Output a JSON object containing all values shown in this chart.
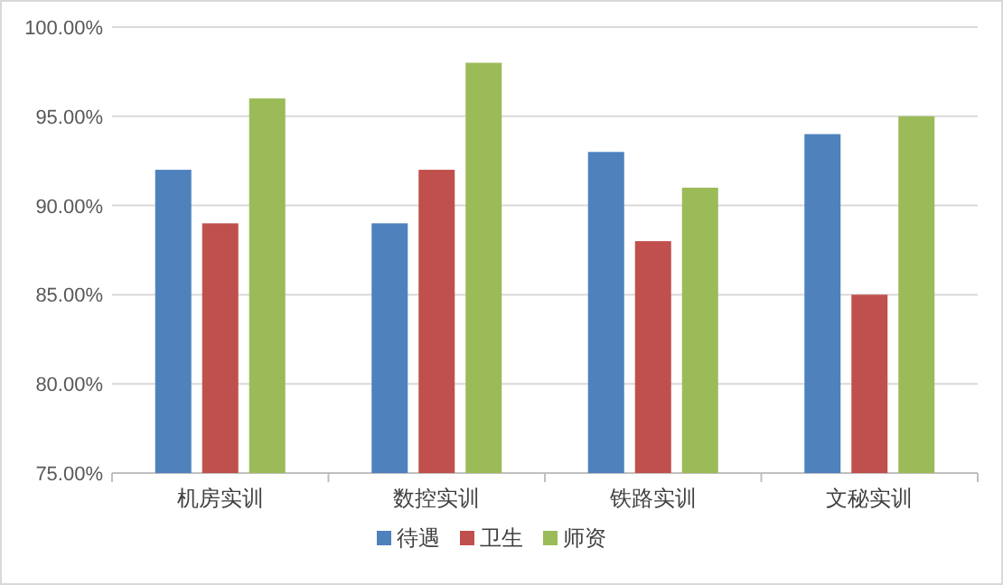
{
  "chart_data": {
    "type": "bar",
    "categories": [
      "机房实训",
      "数控实训",
      "铁路实训",
      "文秘实训"
    ],
    "series": [
      {
        "name": "待遇",
        "color": "#4f81bd",
        "values": [
          92,
          89,
          93,
          94
        ]
      },
      {
        "name": "卫生",
        "color": "#c0504d",
        "values": [
          89,
          92,
          88,
          85
        ]
      },
      {
        "name": "师资",
        "color": "#9bbb59",
        "values": [
          96,
          98,
          91,
          95
        ]
      }
    ],
    "ylim": [
      75,
      100
    ],
    "yticks": [
      {
        "value": 75,
        "label": "75.00%"
      },
      {
        "value": 80,
        "label": "80.00%"
      },
      {
        "value": 85,
        "label": "85.00%"
      },
      {
        "value": 90,
        "label": "90.00%"
      },
      {
        "value": 95,
        "label": "95.00%"
      },
      {
        "value": 100,
        "label": "100.00%"
      }
    ],
    "grid": "y",
    "legend": "bottom"
  }
}
